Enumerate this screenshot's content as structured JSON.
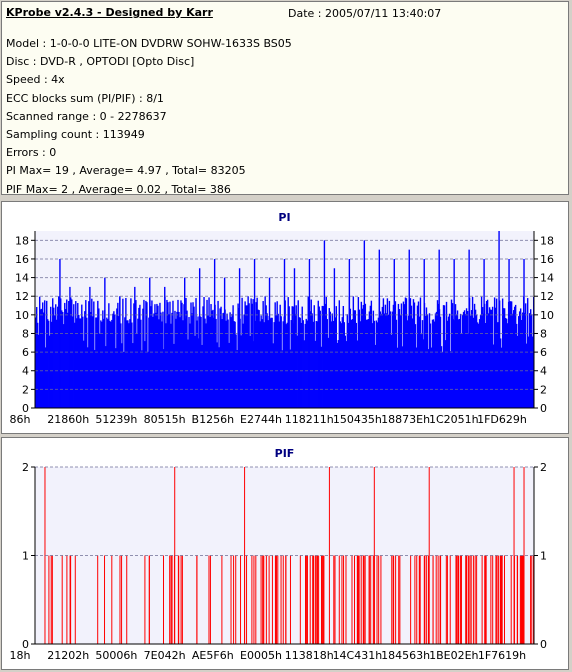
{
  "header": {
    "title": "KProbe v2.4.3 - Designed by Karr",
    "date": "Date : 2005/07/11 13:40:07",
    "lines": [
      "Model : 1-0-0-0 LITE-ON DVDRW SOHW-1633S BS05",
      "Disc : DVD-R , OPTODI [Opto Disc]",
      "Speed : 4x",
      "ECC blocks sum (PI/PIF) : 8/1",
      "Scanned range : 0 - 2278637",
      "Sampling count : 113949",
      "Errors : 0",
      "PI Max= 19 , Average= 4.97 , Total= 83205",
      "PIF Max= 2 , Average= 0.02 , Total= 386"
    ]
  },
  "colors": {
    "pi": "#0000ff",
    "pif": "#ff0000",
    "plot_bg": "#f2f2fc",
    "title": "#000080"
  },
  "chart_data": [
    {
      "type": "bar",
      "title": "PI",
      "series_color": "#0000ff",
      "ylim": [
        0,
        19
      ],
      "yticks": [
        0,
        2,
        4,
        6,
        8,
        10,
        12,
        14,
        16,
        18
      ],
      "grid": "dashed horizontal",
      "xtick_labels": [
        "86h",
        "21860h",
        "51239h",
        "80515h",
        "B1256h",
        "E2744h",
        "118211h",
        "150435h",
        "18873Eh",
        "1C2051h",
        "1FD629h"
      ],
      "baseline": 9,
      "upper_band": 12,
      "max": 19,
      "spikes": [
        {
          "x": 0.05,
          "y": 16
        },
        {
          "x": 0.07,
          "y": 13
        },
        {
          "x": 0.11,
          "y": 13
        },
        {
          "x": 0.14,
          "y": 14
        },
        {
          "x": 0.17,
          "y": 12
        },
        {
          "x": 0.2,
          "y": 13
        },
        {
          "x": 0.23,
          "y": 14
        },
        {
          "x": 0.26,
          "y": 13
        },
        {
          "x": 0.3,
          "y": 14
        },
        {
          "x": 0.33,
          "y": 15
        },
        {
          "x": 0.36,
          "y": 16
        },
        {
          "x": 0.38,
          "y": 14
        },
        {
          "x": 0.41,
          "y": 15
        },
        {
          "x": 0.44,
          "y": 16
        },
        {
          "x": 0.47,
          "y": 14
        },
        {
          "x": 0.5,
          "y": 16
        },
        {
          "x": 0.52,
          "y": 15
        },
        {
          "x": 0.55,
          "y": 16
        },
        {
          "x": 0.58,
          "y": 18
        },
        {
          "x": 0.6,
          "y": 15
        },
        {
          "x": 0.63,
          "y": 16
        },
        {
          "x": 0.66,
          "y": 18
        },
        {
          "x": 0.69,
          "y": 17
        },
        {
          "x": 0.72,
          "y": 16
        },
        {
          "x": 0.75,
          "y": 17
        },
        {
          "x": 0.78,
          "y": 16
        },
        {
          "x": 0.81,
          "y": 17
        },
        {
          "x": 0.84,
          "y": 16
        },
        {
          "x": 0.87,
          "y": 17
        },
        {
          "x": 0.9,
          "y": 16
        },
        {
          "x": 0.93,
          "y": 19
        },
        {
          "x": 0.95,
          "y": 16
        },
        {
          "x": 0.98,
          "y": 16
        }
      ]
    },
    {
      "type": "bar",
      "title": "PIF",
      "series_color": "#ff0000",
      "ylim": [
        0,
        2
      ],
      "yticks": [
        0,
        1,
        2
      ],
      "grid": "dashed horizontal",
      "xtick_labels": [
        "18h",
        "21202h",
        "50006h",
        "7E042h",
        "AE5F6h",
        "E0005h",
        "113818h",
        "14C431h",
        "184563h",
        "1BE02Eh",
        "1F7619h"
      ],
      "values_level_2_at": [
        0.02,
        0.28,
        0.42,
        0.59,
        0.68,
        0.79,
        0.96,
        0.98
      ]
    }
  ]
}
